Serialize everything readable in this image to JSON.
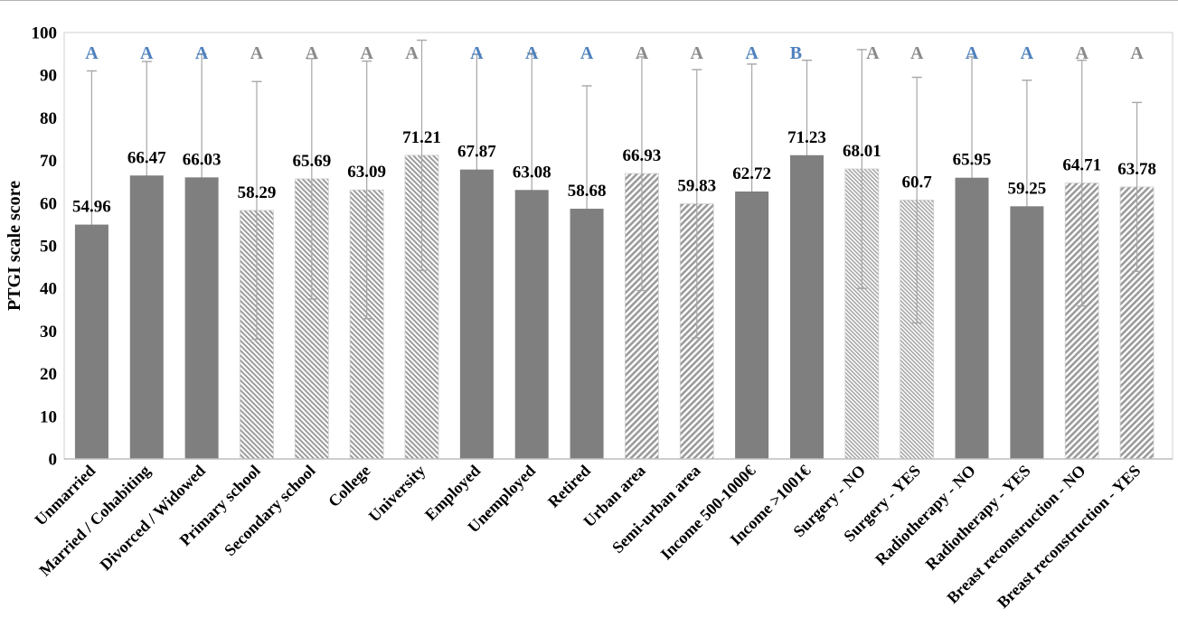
{
  "chart_data": {
    "type": "bar",
    "title": "",
    "xlabel": "",
    "ylabel": "PTGI scale score",
    "ylim": [
      0,
      100
    ],
    "yticks": [
      0,
      10,
      20,
      30,
      40,
      50,
      60,
      70,
      80,
      90,
      100
    ],
    "grid": false,
    "legend": false,
    "categories": [
      "Unmarried",
      "Married / Cohabiting",
      "Divorced / Widowed",
      "Primary school",
      "Secondary school",
      "College",
      "University",
      "Employed",
      "Unemployed",
      "Retired",
      "Urban area",
      "Semi-urban area",
      "Income 500-1000€",
      "Income >1001€",
      "Surgery - NO",
      "Surgery - YES",
      "Radiotherapy - NO",
      "Radiotherapy - YES",
      "Breast reconstruction - NO",
      "Breast reconstruction - YES"
    ],
    "values": [
      54.96,
      66.47,
      66.03,
      58.29,
      65.69,
      63.09,
      71.21,
      67.87,
      63.08,
      58.68,
      66.93,
      59.83,
      62.72,
      71.23,
      68.01,
      60.7,
      65.95,
      59.25,
      64.71,
      63.78
    ],
    "value_labels": [
      "54.96",
      "66.47",
      "66.03",
      "58.29",
      "65.69",
      "63.09",
      "71.21",
      "67.87",
      "63.08",
      "58.68",
      "66.93",
      "59.83",
      "62.72",
      "71.23",
      "68.01",
      "60.7",
      "65.95",
      "59.25",
      "64.71",
      "63.78"
    ],
    "error_bar_top": [
      91.0,
      93.2,
      95.0,
      88.5,
      93.9,
      93.3,
      98.2,
      94.9,
      95.2,
      87.5,
      94.3,
      91.3,
      92.6,
      93.5,
      96.0,
      89.5,
      94.3,
      88.8,
      93.5,
      83.6
    ],
    "error_bar_bottom": [
      18.9,
      39.7,
      37.1,
      28.1,
      37.5,
      32.9,
      44.2,
      40.8,
      31.0,
      29.9,
      39.5,
      28.4,
      32.8,
      48.9,
      40.0,
      31.9,
      37.6,
      29.7,
      35.9,
      44.0
    ],
    "significance_letters": [
      "A",
      "A",
      "A",
      "A",
      "A",
      "A",
      "A",
      "A",
      "A",
      "A",
      "A",
      "A",
      "A",
      "B",
      "A",
      "A",
      "A",
      "A",
      "A",
      "A"
    ],
    "letter_color_keys": [
      "blue",
      "blue",
      "blue",
      "gray",
      "gray",
      "gray",
      "gray",
      "blue",
      "blue",
      "blue",
      "gray",
      "gray",
      "blue",
      "blue",
      "gray",
      "gray",
      "blue",
      "blue",
      "gray",
      "gray"
    ],
    "bar_styles": [
      "solid",
      "solid",
      "solid",
      "hatch-down",
      "hatch-down",
      "hatch-down",
      "hatch-down",
      "solid",
      "solid",
      "solid",
      "hatch-up",
      "hatch-up",
      "solid",
      "solid",
      "hatch-fine",
      "hatch-fine",
      "solid",
      "solid",
      "hatch-up",
      "hatch-up"
    ],
    "colors": {
      "bar_solid": "#7f7f7f",
      "hatch_stroke": "#9c9c9c",
      "hatch_fine_stroke": "#a3a3a3",
      "error_bar": "#a6a6a6",
      "letter_blue": "#4f81bd",
      "letter_gray": "#8a8a8a",
      "plot_border": "#d9d9d9",
      "axis_line": "#bfbfbf",
      "text": "#000000",
      "background": "#ffffff"
    }
  }
}
